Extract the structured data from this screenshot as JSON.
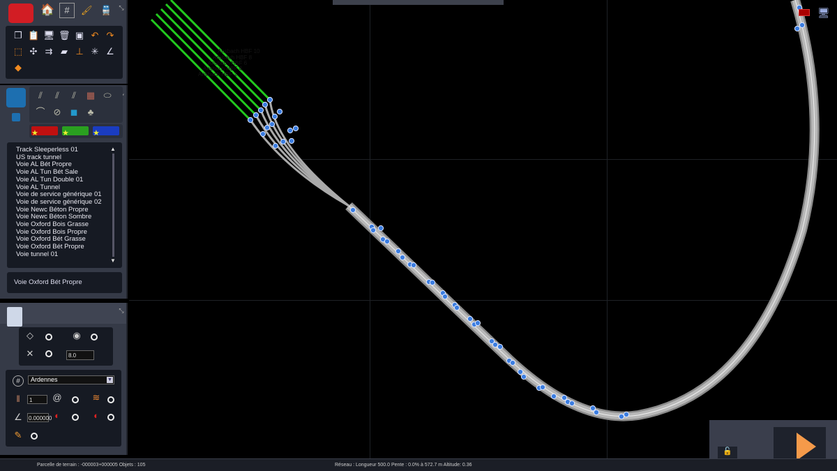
{
  "toolbar": {
    "main_tabs": [
      {
        "icon": "toolbox-icon"
      },
      {
        "icon": "home-icon"
      },
      {
        "icon": "track-icon"
      },
      {
        "icon": "brush-icon"
      },
      {
        "icon": "train-icon"
      }
    ],
    "tools": [
      "copy-icon",
      "paste-icon",
      "monitor-icon",
      "delete-icon",
      "snapshot-icon",
      "undo-icon",
      "redo-icon",
      "select-icon",
      "split-icon",
      "join-icon",
      "lay-icon",
      "height-icon",
      "grid-snap-icon",
      "angle-icon",
      "move-icon"
    ]
  },
  "object_panel": {
    "categories": [
      "track-icon",
      "track-icon",
      "track-icon",
      "brick-icon",
      "stone-icon",
      "tunnel-icon",
      "bridge-icon",
      "water-icon",
      "bag-icon"
    ],
    "favorites": [
      {
        "color": "#c01010"
      },
      {
        "color": "#2aa020"
      },
      {
        "color": "#1a3cc0"
      }
    ],
    "items": [
      "Track Sleeperless 01",
      "US track tunnel",
      "Voie AL Bét Propre",
      "Voie AL Tun Bét Sale",
      "Voie AL Tun Double 01",
      "Voie AL Tunnel",
      "Voie de service générique 01",
      "Voie de service générique 02",
      "Voie Newc Béton Propre",
      "Voie Newc Béton Sombre",
      "Voie Oxford Bois Grasse",
      "Voie Oxford Bois Propre",
      "Voie Oxford Bét Grasse",
      "Voie Oxford Bét Propre",
      "Voie tunnel 01"
    ],
    "selected": "Voie Oxford Bét Propre"
  },
  "properties": {
    "value_field": "8.0",
    "route_select": "Ardennes",
    "count_field": "1",
    "gradient_field": "0.000000"
  },
  "map": {
    "labels": [
      "Ansbach HBF 10",
      "Ansbach HBF 8",
      "Ansbach HBF 6",
      "Ansbach HBF 4",
      "Ansbach HBF 2"
    ],
    "track_color": "#b8b8b8",
    "siding_color": "#22c81e",
    "node_color": "#3b7de0"
  },
  "status": {
    "left": "Parcelle de terrain : -000003+000005  Objets : 105",
    "right": "Réseau :  Longueur  500.0 Pente :  0.0% à 572.7 m Altitude:   0.36"
  }
}
